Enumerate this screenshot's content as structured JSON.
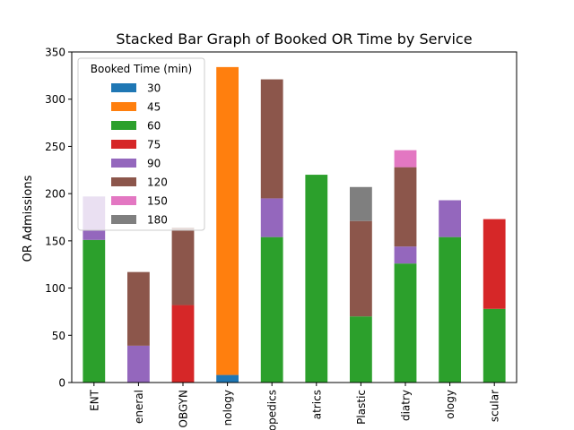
{
  "chart_data": {
    "type": "bar",
    "stacked": true,
    "title": "Stacked Bar Graph of Booked OR Time by Service",
    "xlabel": "",
    "ylabel": "OR Admissions",
    "ylim": [
      0,
      350
    ],
    "yticks": [
      0,
      50,
      100,
      150,
      200,
      250,
      300,
      350
    ],
    "grid": false,
    "categories": [
      "ENT",
      "General",
      "OBGYN",
      "Oncology",
      "Orthopedics",
      "Pediatrics",
      "Plastic",
      "Podiatry",
      "Urology",
      "Vascular"
    ],
    "category_labels_visible": [
      "ENT",
      "eneral",
      "OBGYN",
      "nology",
      "opedics",
      "atrics",
      "Plastic",
      "diatry",
      "ology",
      "scular"
    ],
    "legend": {
      "title": "Booked Time (min)",
      "placement": "upper-left",
      "semi_transparent": true
    },
    "series": [
      {
        "name": "30",
        "color": "#1f77b4",
        "values": [
          0,
          0,
          0,
          8,
          0,
          0,
          0,
          0,
          0,
          0
        ]
      },
      {
        "name": "45",
        "color": "#ff7f0e",
        "values": [
          0,
          0,
          0,
          326,
          0,
          0,
          0,
          0,
          0,
          0
        ]
      },
      {
        "name": "60",
        "color": "#2ca02c",
        "values": [
          151,
          0,
          0,
          0,
          154,
          220,
          70,
          126,
          154,
          78
        ]
      },
      {
        "name": "75",
        "color": "#d62728",
        "values": [
          0,
          0,
          82,
          0,
          0,
          0,
          0,
          0,
          0,
          95
        ]
      },
      {
        "name": "90",
        "color": "#9467bd",
        "values": [
          46,
          39,
          0,
          0,
          41,
          0,
          0,
          18,
          39,
          0
        ]
      },
      {
        "name": "120",
        "color": "#8c564b",
        "values": [
          0,
          78,
          82,
          0,
          126,
          0,
          101,
          84,
          0,
          0
        ]
      },
      {
        "name": "150",
        "color": "#e377c2",
        "values": [
          0,
          0,
          0,
          0,
          0,
          0,
          0,
          18,
          0,
          0
        ]
      },
      {
        "name": "180",
        "color": "#7f7f7f",
        "values": [
          0,
          0,
          0,
          0,
          0,
          0,
          36,
          0,
          0,
          0
        ]
      }
    ]
  }
}
